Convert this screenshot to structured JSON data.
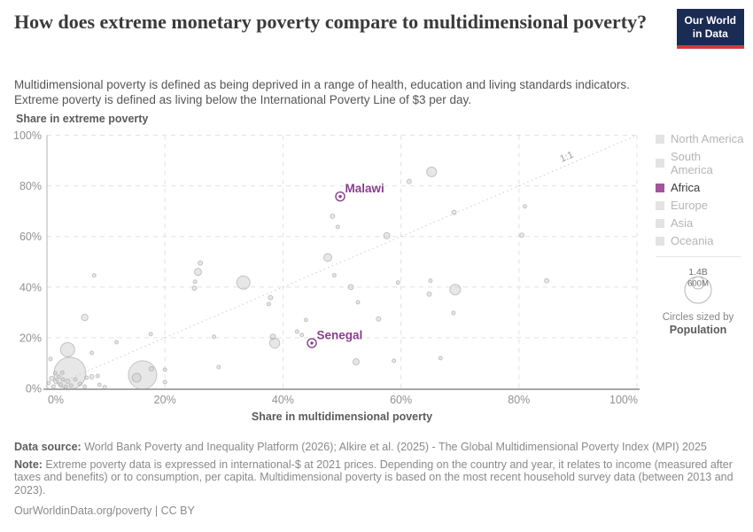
{
  "header": {
    "title": "How does extreme monetary poverty compare to multidimensional poverty?",
    "subtitle_line1": "Multidimensional poverty is defined as being deprived in a range of health, education and living standards indicators.",
    "subtitle_line2": "Extreme poverty is defined as living below the International Poverty Line of $3 per day.",
    "logo": {
      "line1": "Our World",
      "line2": "in Data",
      "bg_color": "#1a2b54",
      "stripe_color": "#cf3b3e"
    }
  },
  "legend": {
    "items": [
      {
        "label": "North America",
        "color": "#e3e3e3",
        "focused": false
      },
      {
        "label": "South America",
        "color": "#e3e3e3",
        "focused": false
      },
      {
        "label": "Africa",
        "color": "#a2559c",
        "focused": true
      },
      {
        "label": "Europe",
        "color": "#e3e3e3",
        "focused": false
      },
      {
        "label": "Asia",
        "color": "#e3e3e3",
        "focused": false
      },
      {
        "label": "Oceania",
        "color": "#e3e3e3",
        "focused": false
      }
    ],
    "size_legend": {
      "outer_label": "1.4B",
      "inner_label": "600M",
      "caption_line1": "Circles sized by",
      "caption_line2": "Population"
    }
  },
  "chart_data": {
    "type": "scatter",
    "xlabel": "Share in multidimensional poverty",
    "ylabel": "Share in extreme poverty",
    "xlim": [
      0,
      100
    ],
    "ylim": [
      0,
      100
    ],
    "grid": true,
    "x_tick_values": [
      0,
      20,
      40,
      60,
      80,
      100
    ],
    "y_tick_values": [
      0,
      20,
      40,
      60,
      80,
      100
    ],
    "x_tick_labels": [
      "0%",
      "20%",
      "40%",
      "60%",
      "80%",
      "100%"
    ],
    "y_tick_labels": [
      "0%",
      "20%",
      "40%",
      "60%",
      "80%",
      "100%"
    ],
    "diagonal": {
      "label": "1:1",
      "from": [
        0,
        0
      ],
      "to": [
        100,
        100
      ]
    },
    "highlighted_points": [
      {
        "name": "Malawi",
        "region": "Africa",
        "x": 49.7,
        "y": 75.8
      },
      {
        "name": "Senegal",
        "region": "Africa",
        "x": 44.9,
        "y": 17.9
      }
    ],
    "point_format": [
      "x_pct",
      "y_pct",
      "radius_px"
    ],
    "background_points": [
      [
        26,
        49.5,
        2.5
      ],
      [
        48.4,
        68,
        2.5
      ],
      [
        49.3,
        63.8,
        2
      ],
      [
        47.6,
        51.7,
        4.5
      ],
      [
        48.7,
        44.6,
        2
      ],
      [
        65.2,
        85.5,
        5.5
      ],
      [
        61.4,
        81.7,
        2.5
      ],
      [
        69,
        69.5,
        2.5
      ],
      [
        81,
        71.9,
        2
      ],
      [
        57.6,
        60.3,
        3.5
      ],
      [
        80.5,
        60.5,
        2.5
      ],
      [
        51.5,
        40,
        3
      ],
      [
        59.5,
        41.8,
        2
      ],
      [
        65,
        42.5,
        2
      ],
      [
        64.8,
        37.2,
        2.5
      ],
      [
        69.2,
        39,
        6
      ],
      [
        52.7,
        34,
        2
      ],
      [
        56.2,
        27.4,
        2.5
      ],
      [
        68.9,
        29.8,
        2
      ],
      [
        84.7,
        42.5,
        2.5
      ],
      [
        52.4,
        10.5,
        3.5
      ],
      [
        58.8,
        10.9,
        2
      ],
      [
        66.7,
        11.9,
        2
      ],
      [
        42.4,
        22.4,
        2
      ],
      [
        43.2,
        21.1,
        2
      ],
      [
        43.9,
        27,
        2
      ],
      [
        8,
        44.6,
        2
      ],
      [
        25.6,
        46,
        4
      ],
      [
        25.1,
        42.1,
        2
      ],
      [
        25,
        39.6,
        2.5
      ],
      [
        33.3,
        41.8,
        7.5
      ],
      [
        37.9,
        35.8,
        2.5
      ],
      [
        37.6,
        33.3,
        2
      ],
      [
        6.4,
        28,
        3.7
      ],
      [
        17.6,
        21.4,
        2
      ],
      [
        28.3,
        20.4,
        2
      ],
      [
        38.6,
        17.9,
        5.7
      ],
      [
        38.3,
        20.4,
        3
      ],
      [
        11.8,
        18.2,
        2
      ],
      [
        7.6,
        14,
        2
      ],
      [
        3.5,
        15.3,
        8
      ],
      [
        0.6,
        11.6,
        2
      ],
      [
        3.9,
        6,
        18
      ],
      [
        16.2,
        5.3,
        16
      ],
      [
        15.2,
        4.2,
        5
      ],
      [
        17.7,
        7.7,
        2.5
      ],
      [
        20,
        7.4,
        2
      ],
      [
        20,
        2.5,
        2
      ],
      [
        29.1,
        8.4,
        2
      ],
      [
        7.6,
        4.6,
        2.5
      ],
      [
        8.6,
        4.9,
        2
      ],
      [
        8.9,
        1.4,
        2
      ],
      [
        9.8,
        0.5,
        2
      ],
      [
        0.3,
        2.1,
        2
      ],
      [
        0.8,
        3.9,
        2.5
      ],
      [
        1.1,
        0.7,
        2
      ],
      [
        1.5,
        2.8,
        2.5
      ],
      [
        2,
        4.6,
        2
      ],
      [
        2.3,
        1.4,
        2.5
      ],
      [
        2.7,
        3.5,
        2
      ],
      [
        3.2,
        0.6,
        2
      ],
      [
        1.4,
        6,
        2
      ],
      [
        2.6,
        6.2,
        2
      ],
      [
        3.5,
        2.8,
        2.5
      ],
      [
        4.1,
        1.1,
        2
      ],
      [
        4.8,
        3.5,
        2
      ],
      [
        5.6,
        1.8,
        2
      ],
      [
        6.4,
        0.7,
        2
      ],
      [
        6.7,
        4.2,
        2
      ]
    ]
  },
  "footer": {
    "data_source_label": "Data source:",
    "data_source_text": " World Bank Poverty and Inequality Platform (2026); Alkire et al. (2025) - The Global Multidimensional Poverty Index (MPI) 2025",
    "note_label": "Note:",
    "note_text": " Extreme poverty data is expressed in international-$ at 2021 prices. Depending on the country and year, it relates to income (measured after taxes and benefits) or to consumption, per capita. Multidimensional poverty is based on the most recent household survey data (between 2013 and 2023).",
    "license": "OurWorldinData.org/poverty | CC BY"
  },
  "colors": {
    "africa": "#a2559c",
    "highlight": "#883e8c",
    "bubble_fill": "#c9c9c9",
    "bubble_stroke": "#9a9a9a",
    "grid": "#e2e2e2",
    "axis_bottom": "#a8a8a8",
    "axis_left": "#c4c4c4",
    "tick_label": "#919191",
    "axis_title": "#5b5b5b",
    "diagonal": "#cccccc",
    "legend_label": "#b5b5b5",
    "legend_label_focused": "#3a3a3a"
  }
}
